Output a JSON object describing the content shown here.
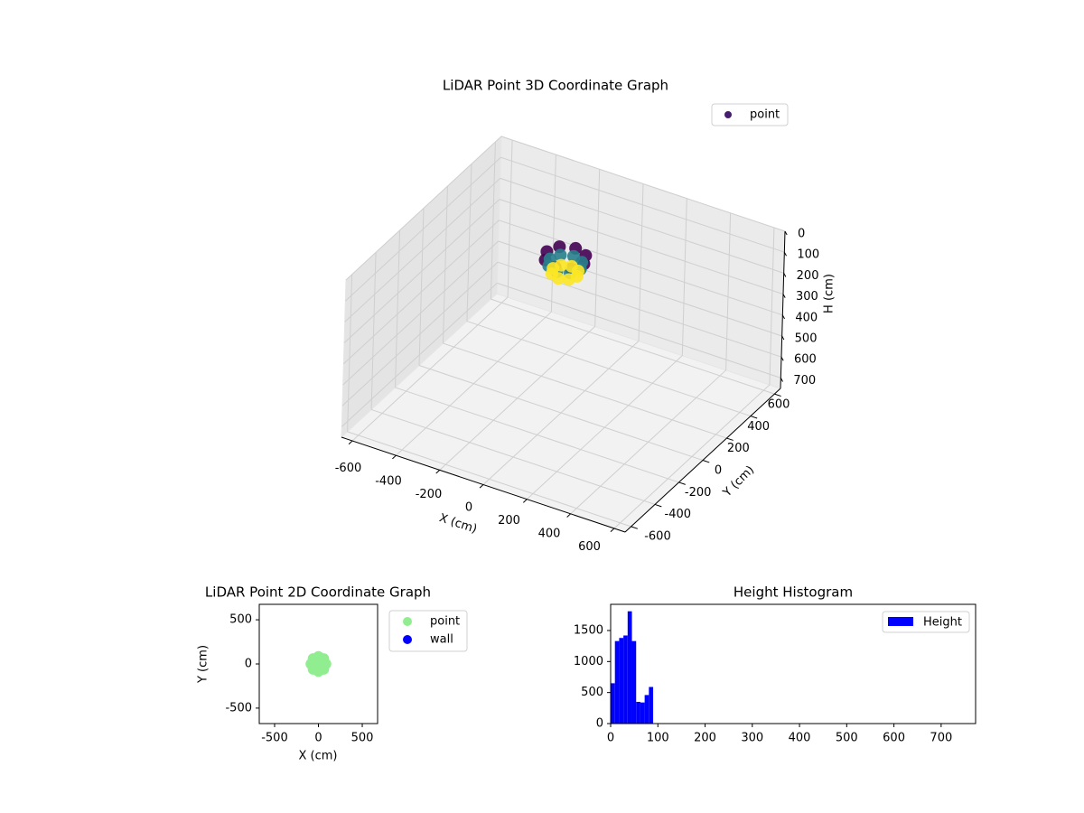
{
  "chart_data": [
    {
      "type": "scatter3d",
      "title": "LiDAR Point 3D Coordinate Graph",
      "xlabel": "X (cm)",
      "ylabel": "Y (cm)",
      "zlabel": "H (cm)",
      "xlim": [
        -650,
        650
      ],
      "ylim": [
        -650,
        650
      ],
      "zlim": [
        0,
        750
      ],
      "z_inverted": true,
      "xticks": [
        -600,
        -400,
        -200,
        0,
        200,
        400,
        600
      ],
      "yticks": [
        -600,
        -400,
        -200,
        0,
        200,
        400,
        600
      ],
      "zticks": [
        0,
        100,
        200,
        300,
        400,
        500,
        600,
        700
      ],
      "colormap": "viridis",
      "grid": true,
      "legend": "upper right",
      "series": [
        {
          "name": "point",
          "color": "#471e6f",
          "x": [
            85,
            60,
            0,
            -60,
            -85,
            -60,
            0,
            60,
            70,
            49,
            0,
            -49,
            -70,
            -49,
            0,
            49,
            55,
            39,
            0,
            -39,
            -55,
            -39,
            0,
            39
          ],
          "y": [
            0,
            60,
            85,
            60,
            0,
            -60,
            -85,
            -60,
            0,
            49,
            70,
            49,
            0,
            -49,
            -70,
            -49,
            0,
            39,
            55,
            39,
            0,
            -39,
            -55,
            -39
          ],
          "z": [
            10,
            10,
            10,
            10,
            10,
            10,
            10,
            10,
            40,
            40,
            40,
            40,
            40,
            40,
            40,
            40,
            80,
            80,
            80,
            80,
            80,
            80,
            80,
            80
          ]
        }
      ]
    },
    {
      "type": "scatter",
      "title": "LiDAR Point 2D Coordinate Graph",
      "xlabel": "X (cm)",
      "ylabel": "Y (cm)",
      "xlim": [
        -675,
        675
      ],
      "ylim": [
        -675,
        675
      ],
      "xticks": [
        -500,
        0,
        500
      ],
      "yticks": [
        -500,
        0,
        500
      ],
      "legend": "outside right",
      "series": [
        {
          "name": "point",
          "color": "#90ee90",
          "x": [
            85,
            60,
            0,
            -60,
            -85,
            -60,
            0,
            60,
            70,
            49,
            0,
            -49,
            -70,
            -49,
            0,
            49,
            55,
            39,
            0,
            -39,
            -55,
            -39,
            0,
            39
          ],
          "y": [
            0,
            60,
            85,
            60,
            0,
            -60,
            -85,
            -60,
            0,
            49,
            70,
            49,
            0,
            -49,
            -70,
            -49,
            0,
            39,
            55,
            39,
            0,
            -39,
            -55,
            -39
          ]
        },
        {
          "name": "wall",
          "color": "#0000ff",
          "x": [],
          "y": []
        }
      ]
    },
    {
      "type": "histogram",
      "title": "Height Histogram",
      "bins": [
        0,
        9,
        18,
        27,
        36,
        45,
        54,
        63,
        72,
        81,
        90
      ],
      "xlim": [
        0,
        773
      ],
      "ylim": [
        0,
        1922
      ],
      "xticks": [
        0,
        100,
        200,
        300,
        400,
        500,
        600,
        700
      ],
      "yticks": [
        0,
        500,
        1000,
        1500
      ],
      "legend": "upper right",
      "series": [
        {
          "name": "Height",
          "color": "#0000ff",
          "values": [
            650,
            1330,
            1380,
            1420,
            1810,
            1330,
            350,
            340,
            460,
            590
          ]
        }
      ]
    }
  ]
}
